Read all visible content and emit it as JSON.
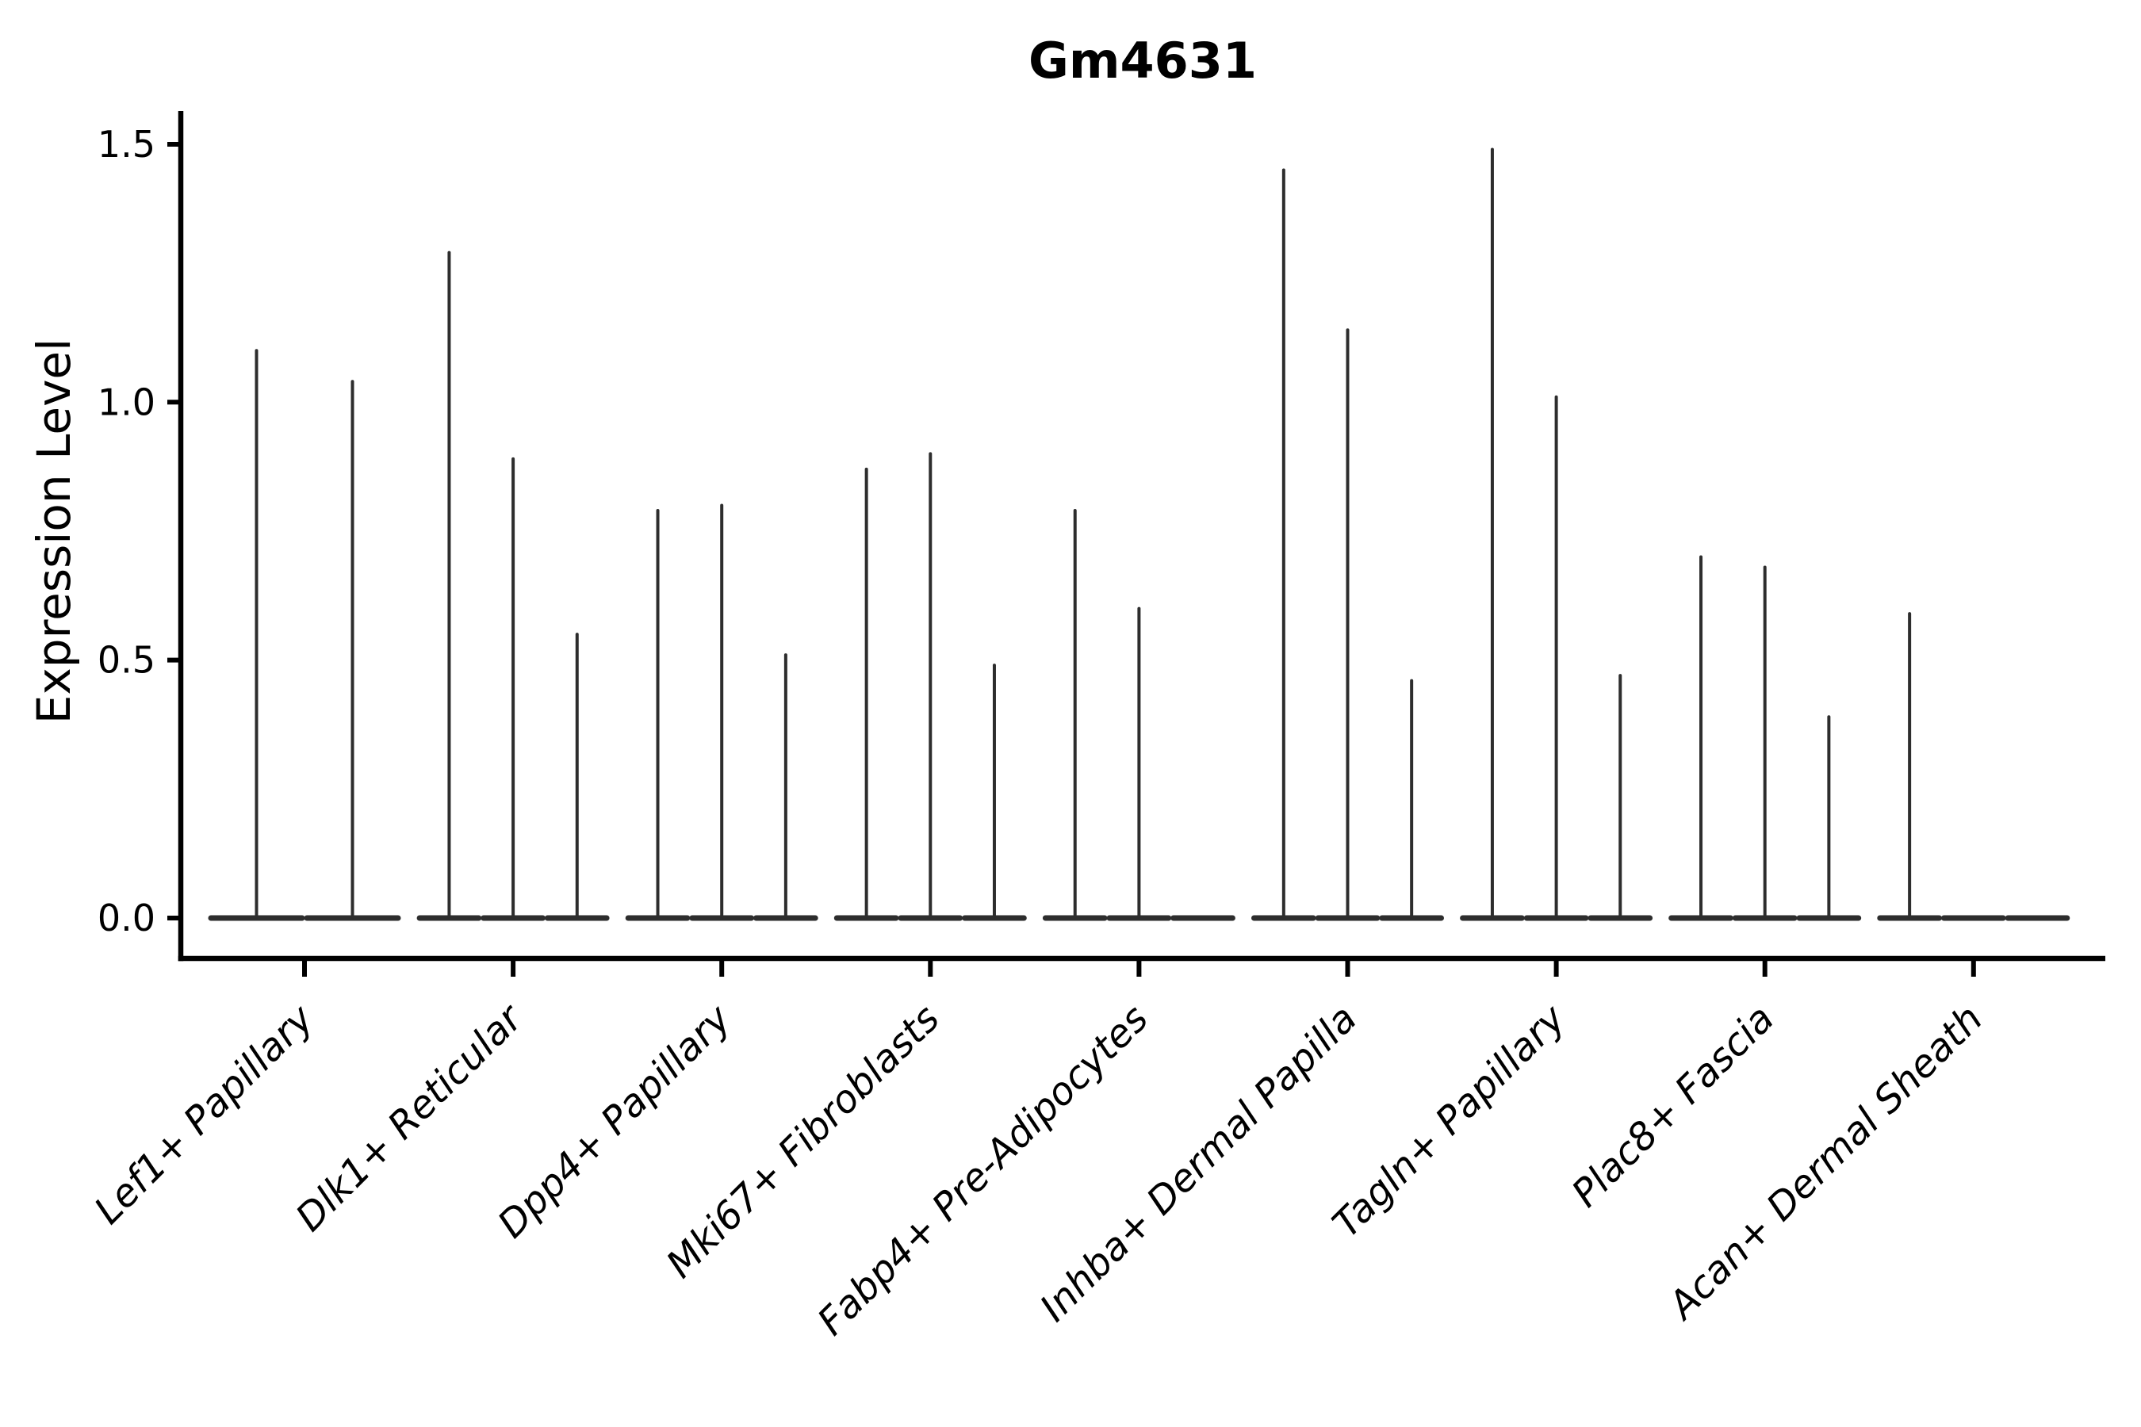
{
  "page": {
    "background": "#ffffff"
  },
  "chart_data": {
    "type": "violin",
    "title": "Gm4631",
    "xlabel": "",
    "ylabel": "Expression Level",
    "ytick_labels": [
      "0.0",
      "0.5",
      "1.0",
      "1.5"
    ],
    "ytick_values": [
      0,
      0.5,
      1.0,
      1.5
    ],
    "ylim": [
      -0.08,
      1.57
    ],
    "grid": false,
    "legend": "none",
    "categories": [
      "Lef1+ Papillary",
      "Dlk1+ Reticular",
      "Dpp4+ Papillary",
      "Mki67+ Fibroblasts",
      "Fabp4+ Pre-Adipocytes",
      "Inhba+ Dermal Papilla",
      "Tagln+ Papillary",
      "Plac8+ Fascia",
      "Acan+ Dermal Sheath"
    ],
    "groups": [
      {
        "category": "Lef1+ Papillary",
        "violin_peaks": [
          1.1,
          1.04
        ]
      },
      {
        "category": "Dlk1+ Reticular",
        "violin_peaks": [
          1.29,
          0.89,
          0.55
        ]
      },
      {
        "category": "Dpp4+ Papillary",
        "violin_peaks": [
          0.79,
          0.8,
          0.51
        ]
      },
      {
        "category": "Mki67+ Fibroblasts",
        "violin_peaks": [
          0.87,
          0.9,
          0.49
        ]
      },
      {
        "category": "Fabp4+ Pre-Adipocytes",
        "violin_peaks": [
          0.79,
          0.6,
          0.0
        ]
      },
      {
        "category": "Inhba+ Dermal Papilla",
        "violin_peaks": [
          1.45,
          1.14,
          0.46
        ]
      },
      {
        "category": "Tagln+ Papillary",
        "violin_peaks": [
          1.49,
          1.01,
          0.47
        ]
      },
      {
        "category": "Plac8+ Fascia",
        "violin_peaks": [
          0.7,
          0.68,
          0.39
        ]
      },
      {
        "category": "Acan+ Dermal Sheath",
        "violin_peaks": [
          0.59,
          0.0,
          0.0
        ]
      }
    ],
    "colors": {
      "violin": "#2d2d2d",
      "axis": "#000000",
      "text": "#000000"
    }
  }
}
